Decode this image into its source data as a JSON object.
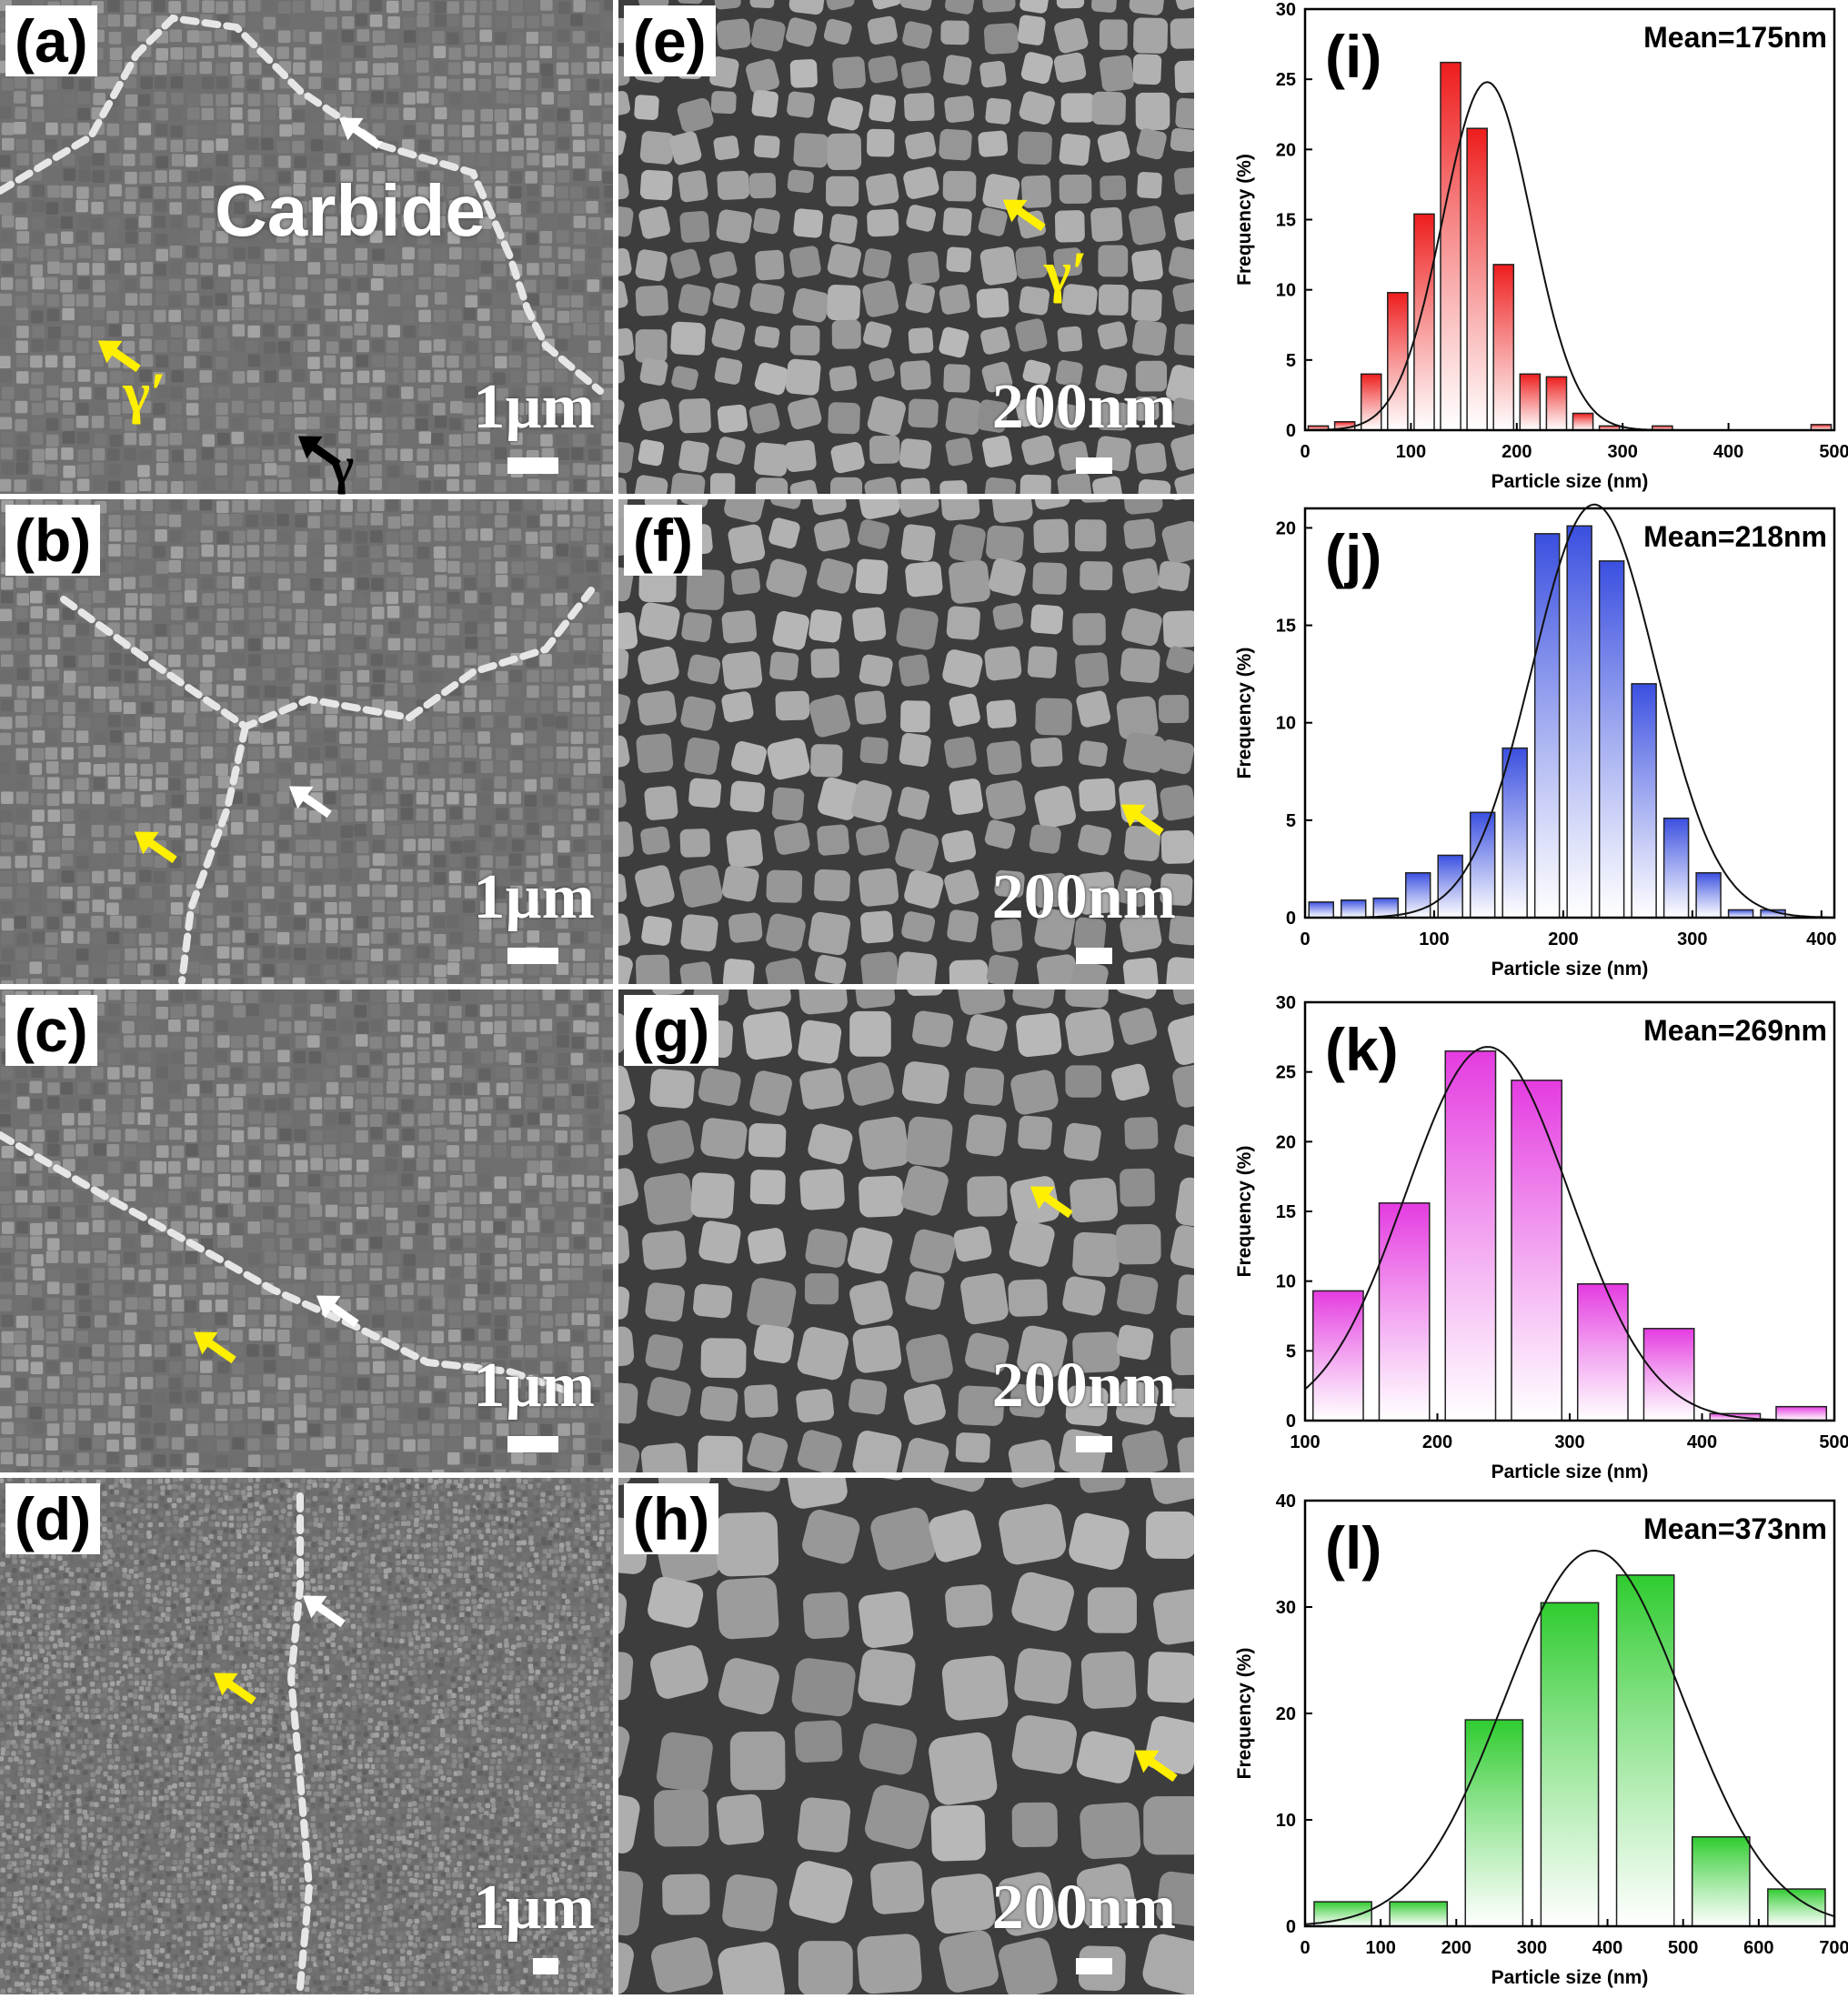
{
  "panels_sem": [
    {
      "id": "a",
      "label": "(a)",
      "scale": "1µm",
      "mag": "low"
    },
    {
      "id": "b",
      "label": "(b)",
      "scale": "1µm",
      "mag": "low"
    },
    {
      "id": "c",
      "label": "(c)",
      "scale": "1µm",
      "mag": "low"
    },
    {
      "id": "d",
      "label": "(d)",
      "scale": "1µm",
      "mag": "low"
    },
    {
      "id": "e",
      "label": "(e)",
      "scale": "200nm",
      "mag": "high"
    },
    {
      "id": "f",
      "label": "(f)",
      "scale": "200nm",
      "mag": "high"
    },
    {
      "id": "g",
      "label": "(g)",
      "scale": "200nm",
      "mag": "high"
    },
    {
      "id": "h",
      "label": "(h)",
      "scale": "200nm",
      "mag": "high"
    }
  ],
  "annotations": {
    "carbide": "Carbide",
    "gamma_prime": "γ′",
    "gamma": "γ",
    "arrow_colors": {
      "gamma_prime": "#ffef00",
      "carbide": "#ffffff",
      "gamma": "#000000"
    }
  },
  "chart_data": [
    {
      "type": "bar",
      "panel": "(i)",
      "mean_label": "Mean=175nm",
      "color": "#ee1c1c",
      "xlabel": "Particle size (nm)",
      "ylabel": "Frequency (%)",
      "xlim": [
        0,
        500
      ],
      "ylim": [
        0,
        30
      ],
      "xticks": [
        0,
        100,
        200,
        300,
        400,
        500
      ],
      "yticks": [
        0,
        5,
        10,
        15,
        20,
        25,
        30
      ],
      "bin_centers": [
        25,
        75,
        125,
        150,
        175,
        200,
        225,
        250,
        275,
        300,
        350,
        400,
        475
      ],
      "bin_width": 25,
      "x": [
        12.5,
        37.5,
        62.5,
        87.5,
        112.5,
        137.5,
        162.5,
        187.5,
        212.5,
        237.5,
        262.5,
        287.5,
        312.5,
        337.5,
        362.5,
        387.5,
        412.5,
        437.5,
        462.5,
        487.5
      ],
      "values": [
        0.3,
        0.6,
        4.0,
        9.8,
        15.4,
        26.2,
        21.5,
        11.8,
        4.0,
        3.8,
        1.2,
        0.3,
        0,
        0.3,
        0,
        0,
        0,
        0,
        0,
        0.4
      ],
      "fit": {
        "type": "gaussian",
        "peak": 24.8,
        "center": 172,
        "sigma": 42
      }
    },
    {
      "type": "bar",
      "panel": "(j)",
      "mean_label": "Mean=218nm",
      "color": "#3a4fe0",
      "xlabel": "Particle size (nm)",
      "ylabel": "Frequency (%)",
      "xlim": [
        0,
        410
      ],
      "ylim": [
        0,
        21
      ],
      "xticks": [
        0,
        100,
        200,
        300,
        400
      ],
      "yticks": [
        0,
        5,
        10,
        15,
        20
      ],
      "x": [
        12.5,
        37.5,
        62.5,
        87.5,
        112.5,
        137.5,
        162.5,
        187.5,
        212.5,
        237.5,
        262.5,
        287.5,
        312.5,
        337.5,
        362.5,
        387.5,
        402.5
      ],
      "values": [
        0.8,
        0.9,
        1.0,
        2.3,
        3.2,
        5.4,
        8.7,
        19.7,
        20.1,
        18.3,
        12.0,
        5.1,
        2.3,
        0.4,
        0.4,
        0,
        0
      ],
      "fit": {
        "type": "gaussian",
        "peak": 21.2,
        "center": 224,
        "sigma": 48
      }
    },
    {
      "type": "bar",
      "panel": "(k)",
      "mean_label": "Mean=269nm",
      "color": "#e43be0",
      "xlabel": "Particle size (nm)",
      "ylabel": "Frequency (%)",
      "xlim": [
        100,
        500
      ],
      "ylim": [
        0,
        30
      ],
      "xticks": [
        100,
        200,
        300,
        400,
        500
      ],
      "yticks": [
        0,
        5,
        10,
        15,
        20,
        25,
        30
      ],
      "x": [
        125,
        175,
        225,
        275,
        325,
        375,
        425,
        475
      ],
      "values": [
        9.3,
        15.6,
        26.5,
        24.4,
        9.8,
        6.6,
        0.5,
        1.0
      ],
      "fit": {
        "type": "gaussian",
        "peak": 26.8,
        "center": 238,
        "sigma": 62
      }
    },
    {
      "type": "bar",
      "panel": "(l)",
      "mean_label": "Mean=373nm",
      "color": "#2fcc2f",
      "xlabel": "Particle size (nm)",
      "ylabel": "Frequency (%)",
      "xlim": [
        0,
        700
      ],
      "ylim": [
        0,
        40
      ],
      "xticks": [
        0,
        100,
        200,
        300,
        400,
        500,
        600,
        700
      ],
      "yticks": [
        0,
        10,
        20,
        30,
        40
      ],
      "x": [
        50,
        150,
        250,
        350,
        450,
        550,
        650
      ],
      "values": [
        2.3,
        2.3,
        19.4,
        30.4,
        33.0,
        8.4,
        3.5
      ],
      "fit": {
        "type": "gaussian",
        "peak": 35.3,
        "center": 382,
        "sigma": 118
      }
    }
  ]
}
